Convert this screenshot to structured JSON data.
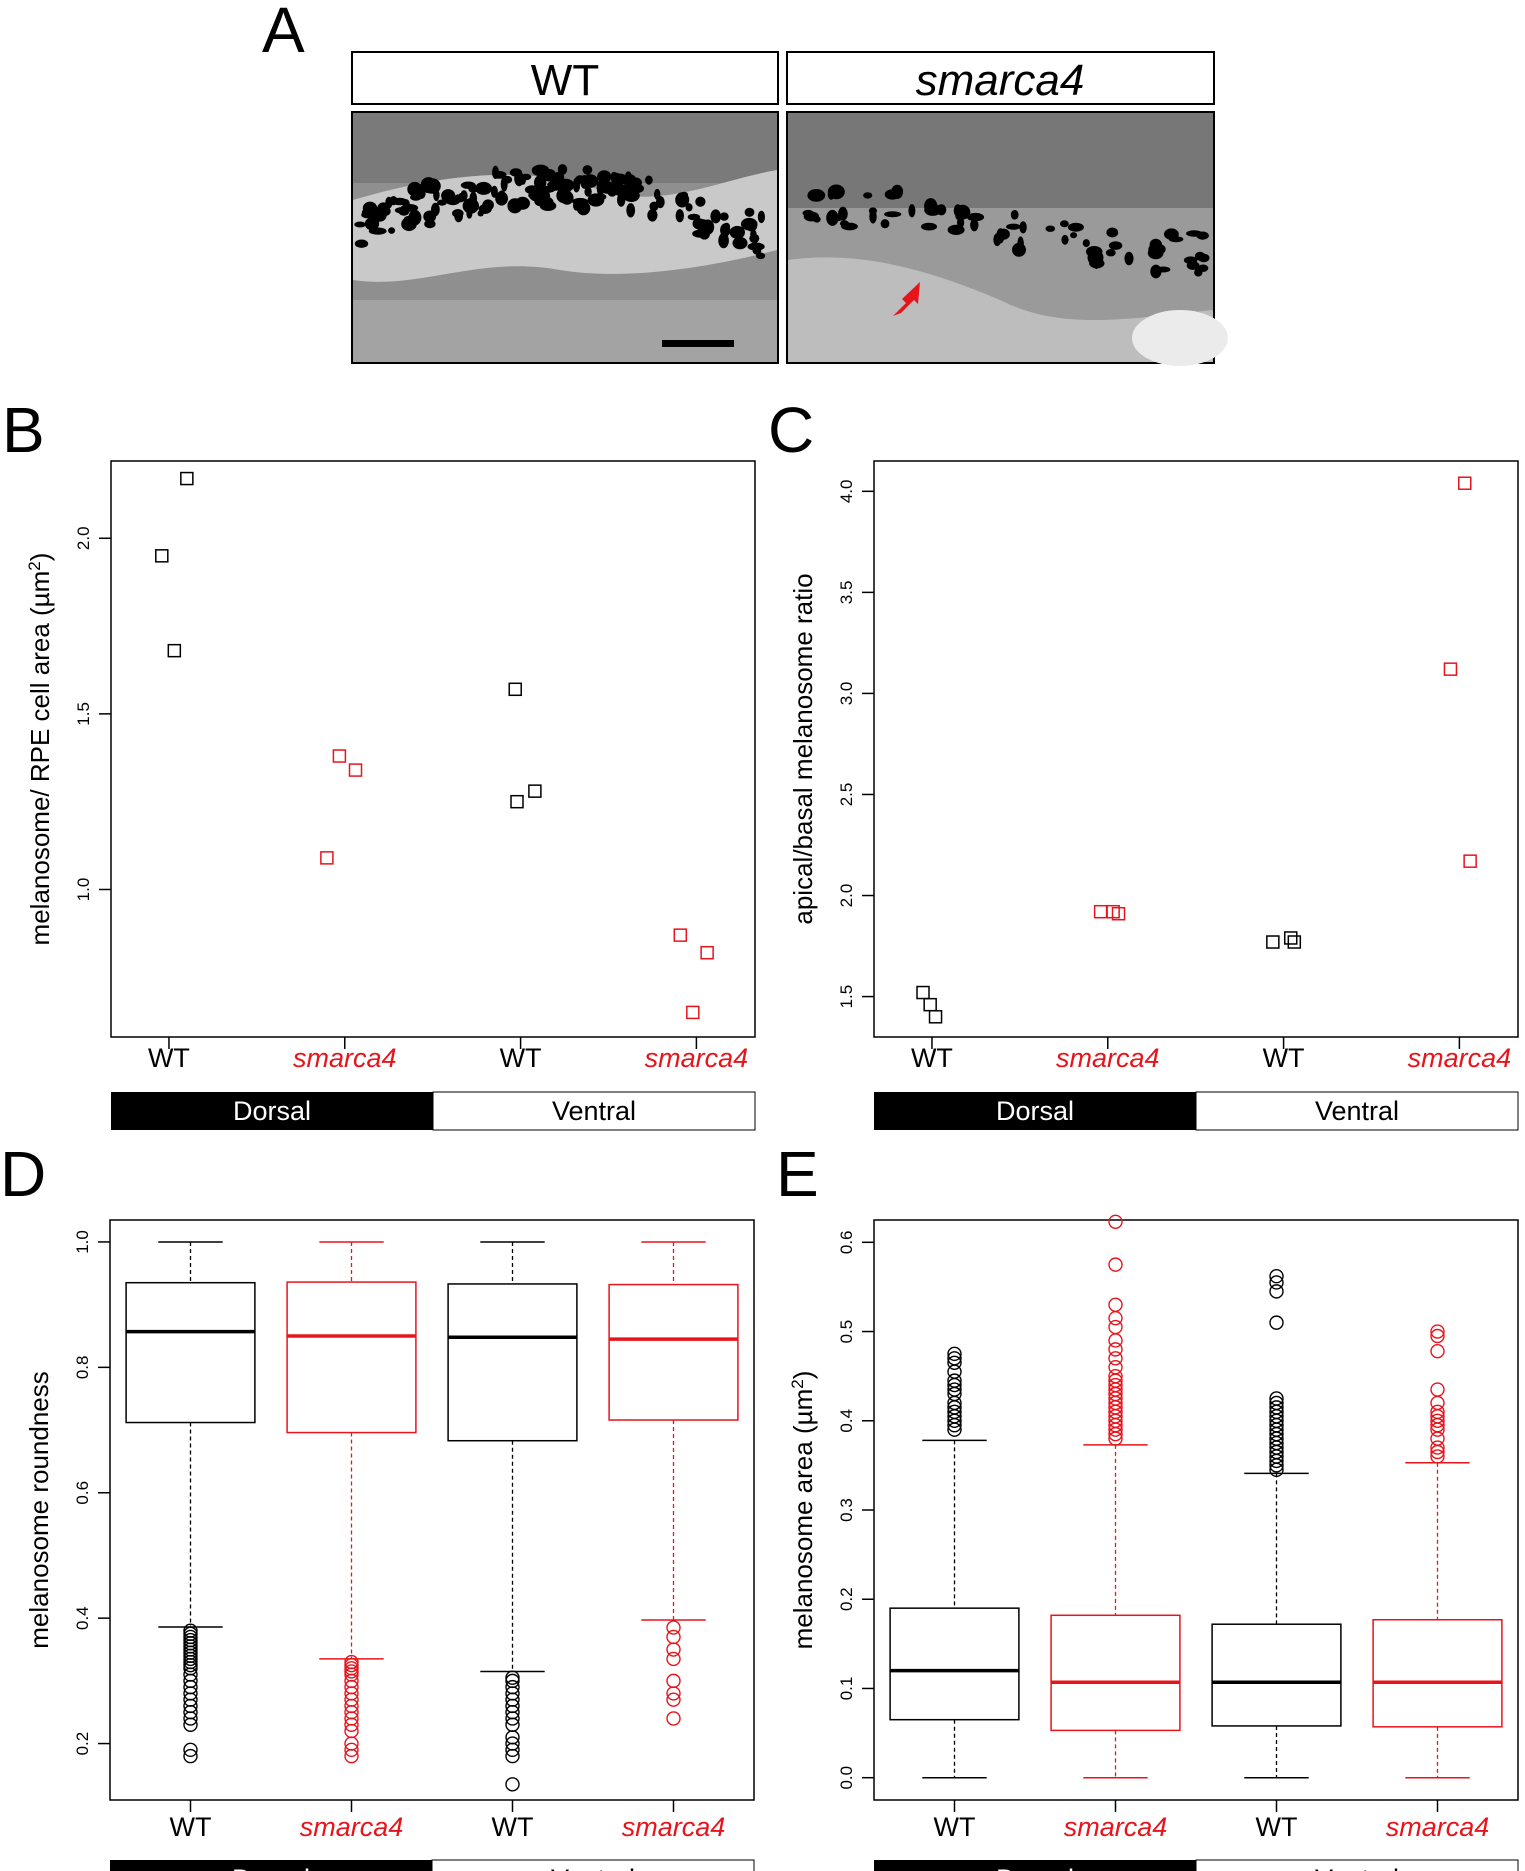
{
  "panels": {
    "A": {
      "letter": "A",
      "headers": [
        "WT",
        "smarca4"
      ],
      "scale_bar_shown": true,
      "arrow_color": "#e8141c"
    },
    "B": {
      "letter": "B"
    },
    "C": {
      "letter": "C"
    },
    "D": {
      "letter": "D"
    },
    "E": {
      "letter": "E"
    }
  },
  "colors": {
    "wt": "#000000",
    "mutant": "#e8141c"
  },
  "chart_data": [
    {
      "id": "B",
      "type": "scatter",
      "marker": "square",
      "ylabel": "melanosome/ RPE cell area (µm²)",
      "ylabel_main": "melanosome/ RPE cell area (µm",
      "ylabel_sup": "2",
      "ylabel_tail": ")",
      "categories": [
        "WT",
        "smarca4",
        "WT",
        "smarca4"
      ],
      "category_colors": [
        "#000000",
        "#e8141c",
        "#000000",
        "#e8141c"
      ],
      "groups": [
        "Dorsal",
        "Ventral"
      ],
      "ylim": [
        0.58,
        2.22
      ],
      "yticks": [
        1.0,
        1.5,
        2.0
      ],
      "ytick_labels": [
        "1.0",
        "1.5",
        "2.0"
      ],
      "points": [
        {
          "cat": 0,
          "dx": -0.04,
          "y": 1.95
        },
        {
          "cat": 0,
          "dx": 0.03,
          "y": 1.68
        },
        {
          "cat": 0,
          "dx": 0.1,
          "y": 2.17
        },
        {
          "cat": 1,
          "dx": -0.1,
          "y": 1.09
        },
        {
          "cat": 1,
          "dx": -0.03,
          "y": 1.38
        },
        {
          "cat": 1,
          "dx": 0.06,
          "y": 1.34
        },
        {
          "cat": 2,
          "dx": -0.03,
          "y": 1.57
        },
        {
          "cat": 2,
          "dx": -0.02,
          "y": 1.25
        },
        {
          "cat": 2,
          "dx": 0.08,
          "y": 1.28
        },
        {
          "cat": 3,
          "dx": -0.09,
          "y": 0.87
        },
        {
          "cat": 3,
          "dx": -0.02,
          "y": 0.65
        },
        {
          "cat": 3,
          "dx": 0.06,
          "y": 0.82
        }
      ],
      "grid": false
    },
    {
      "id": "C",
      "type": "scatter",
      "marker": "square",
      "ylabel": "apical/basal melanosome ratio",
      "categories": [
        "WT",
        "smarca4",
        "WT",
        "smarca4"
      ],
      "category_colors": [
        "#000000",
        "#e8141c",
        "#000000",
        "#e8141c"
      ],
      "groups": [
        "Dorsal",
        "Ventral"
      ],
      "ylim": [
        1.3,
        4.15
      ],
      "yticks": [
        1.5,
        2.0,
        2.5,
        3.0,
        3.5,
        4.0
      ],
      "ytick_labels": [
        "1.5",
        "2.0",
        "2.5",
        "3.0",
        "3.5",
        "4.0"
      ],
      "points": [
        {
          "cat": 0,
          "dx": -0.05,
          "y": 1.52
        },
        {
          "cat": 0,
          "dx": -0.01,
          "y": 1.46
        },
        {
          "cat": 0,
          "dx": 0.02,
          "y": 1.4
        },
        {
          "cat": 1,
          "dx": -0.04,
          "y": 1.92
        },
        {
          "cat": 1,
          "dx": 0.03,
          "y": 1.92
        },
        {
          "cat": 1,
          "dx": 0.06,
          "y": 1.91
        },
        {
          "cat": 2,
          "dx": -0.06,
          "y": 1.77
        },
        {
          "cat": 2,
          "dx": 0.04,
          "y": 1.79
        },
        {
          "cat": 2,
          "dx": 0.06,
          "y": 1.77
        },
        {
          "cat": 3,
          "dx": -0.05,
          "y": 3.12
        },
        {
          "cat": 3,
          "dx": 0.03,
          "y": 4.04
        },
        {
          "cat": 3,
          "dx": 0.06,
          "y": 2.17
        }
      ],
      "grid": false
    },
    {
      "id": "D",
      "type": "box",
      "ylabel": "melanosome roundness",
      "categories": [
        "WT",
        "smarca4",
        "WT",
        "smarca4"
      ],
      "category_colors": [
        "#000000",
        "#e8141c",
        "#000000",
        "#e8141c"
      ],
      "groups": [
        "Dorsal",
        "Ventral"
      ],
      "ylim": [
        0.11,
        1.035
      ],
      "yticks": [
        0.2,
        0.4,
        0.6,
        0.8,
        1.0
      ],
      "ytick_labels": [
        "0.2",
        "0.4",
        "0.6",
        "0.8",
        "1.0"
      ],
      "boxes": [
        {
          "q1": 0.712,
          "median": 0.857,
          "q3": 0.935,
          "whisker_low": 0.386,
          "whisker_high": 1.0,
          "outliers": [
            0.38,
            0.375,
            0.37,
            0.365,
            0.36,
            0.355,
            0.35,
            0.345,
            0.34,
            0.335,
            0.33,
            0.325,
            0.32,
            0.31,
            0.3,
            0.29,
            0.28,
            0.27,
            0.26,
            0.25,
            0.24,
            0.23,
            0.19,
            0.18
          ]
        },
        {
          "q1": 0.696,
          "median": 0.85,
          "q3": 0.936,
          "whisker_low": 0.335,
          "whisker_high": 1.0,
          "outliers": [
            0.33,
            0.325,
            0.32,
            0.315,
            0.31,
            0.3,
            0.29,
            0.28,
            0.27,
            0.26,
            0.25,
            0.24,
            0.23,
            0.22,
            0.2,
            0.19,
            0.18
          ]
        },
        {
          "q1": 0.683,
          "median": 0.848,
          "q3": 0.933,
          "whisker_low": 0.315,
          "whisker_high": 1.0,
          "outliers": [
            0.305,
            0.3,
            0.29,
            0.28,
            0.27,
            0.26,
            0.25,
            0.24,
            0.23,
            0.21,
            0.2,
            0.19,
            0.18,
            0.135
          ]
        },
        {
          "q1": 0.716,
          "median": 0.845,
          "q3": 0.932,
          "whisker_low": 0.397,
          "whisker_high": 1.0,
          "outliers": [
            0.385,
            0.37,
            0.35,
            0.335,
            0.3,
            0.28,
            0.27,
            0.24
          ]
        }
      ],
      "grid": false
    },
    {
      "id": "E",
      "type": "box",
      "ylabel": "melanosome area (µm²)",
      "ylabel_main": "melanosome area (µm",
      "ylabel_sup": "2",
      "ylabel_tail": ")",
      "categories": [
        "WT",
        "smarca4",
        "WT",
        "smarca4"
      ],
      "category_colors": [
        "#000000",
        "#e8141c",
        "#000000",
        "#e8141c"
      ],
      "groups": [
        "Dorsal",
        "Ventral"
      ],
      "ylim": [
        -0.025,
        0.625
      ],
      "yticks": [
        0.0,
        0.1,
        0.2,
        0.3,
        0.4,
        0.5,
        0.6
      ],
      "ytick_labels": [
        "0.0",
        "0.1",
        "0.2",
        "0.3",
        "0.4",
        "0.5",
        "0.6"
      ],
      "boxes": [
        {
          "q1": 0.065,
          "median": 0.12,
          "q3": 0.19,
          "whisker_low": 0.0,
          "whisker_high": 0.378,
          "outliers": [
            0.39,
            0.395,
            0.4,
            0.405,
            0.41,
            0.415,
            0.42,
            0.43,
            0.435,
            0.44,
            0.445,
            0.455,
            0.465,
            0.47,
            0.475
          ]
        },
        {
          "q1": 0.053,
          "median": 0.107,
          "q3": 0.182,
          "whisker_low": 0.0,
          "whisker_high": 0.373,
          "outliers": [
            0.38,
            0.385,
            0.39,
            0.395,
            0.4,
            0.405,
            0.41,
            0.415,
            0.42,
            0.425,
            0.43,
            0.435,
            0.44,
            0.445,
            0.45,
            0.46,
            0.47,
            0.48,
            0.49,
            0.505,
            0.515,
            0.53,
            0.575,
            0.623
          ]
        },
        {
          "q1": 0.058,
          "median": 0.107,
          "q3": 0.172,
          "whisker_low": 0.0,
          "whisker_high": 0.341,
          "outliers": [
            0.345,
            0.35,
            0.355,
            0.36,
            0.365,
            0.37,
            0.375,
            0.38,
            0.385,
            0.39,
            0.395,
            0.4,
            0.405,
            0.41,
            0.415,
            0.42,
            0.425,
            0.51,
            0.545,
            0.555,
            0.562
          ]
        },
        {
          "q1": 0.057,
          "median": 0.107,
          "q3": 0.177,
          "whisker_low": 0.0,
          "whisker_high": 0.353,
          "outliers": [
            0.36,
            0.365,
            0.37,
            0.38,
            0.39,
            0.395,
            0.4,
            0.405,
            0.41,
            0.42,
            0.435,
            0.478,
            0.495,
            0.5
          ]
        }
      ],
      "grid": false
    }
  ]
}
